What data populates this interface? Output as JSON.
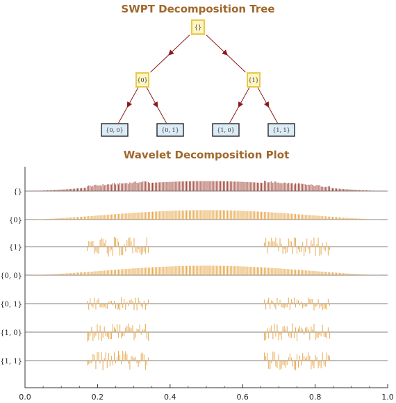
{
  "colors": {
    "title": "#a0682c",
    "edge": "#8b1a1a",
    "level1_fill": "#fdf5c4",
    "level1_stroke": "#e8c84a",
    "leaf_fill": "#dcecf7",
    "leaf_stroke": "#333333",
    "root_signal": "#a0483c",
    "sub_signal": "#e8a84c",
    "axis": "#333333"
  },
  "chart_data": [
    {
      "type": "tree",
      "title": "SWPT Decomposition Tree",
      "nodes": [
        {
          "id": "root",
          "label": "{}",
          "parent": null,
          "kind": "level1"
        },
        {
          "id": "n0",
          "label": "{0}",
          "parent": "root",
          "kind": "level1"
        },
        {
          "id": "n1",
          "label": "{1}",
          "parent": "root",
          "kind": "level1"
        },
        {
          "id": "n00",
          "label": "{0, 0}",
          "parent": "n0",
          "kind": "leaf"
        },
        {
          "id": "n01",
          "label": "{0, 1}",
          "parent": "n0",
          "kind": "leaf"
        },
        {
          "id": "n10",
          "label": "{1, 0}",
          "parent": "n1",
          "kind": "leaf"
        },
        {
          "id": "n11",
          "label": "{1, 1}",
          "parent": "n1",
          "kind": "leaf"
        }
      ]
    },
    {
      "type": "bar",
      "title": "Wavelet Decomposition Plot",
      "xlim": [
        0.0,
        1.0
      ],
      "xticks": [
        "0.0",
        "0.2",
        "0.4",
        "0.6",
        "0.8",
        "1.0"
      ],
      "series": [
        {
          "name": "{}",
          "color": "#a0483c",
          "envelope": "smooth",
          "amplitude": 0.9,
          "burst_ranges": [
            [
              0.17,
              0.34
            ],
            [
              0.66,
              0.84
            ]
          ],
          "burst_amplitude": 0.35,
          "signed": false
        },
        {
          "name": "{0}",
          "color": "#e8a84c",
          "envelope": "smooth",
          "amplitude": 0.85,
          "burst_ranges": [],
          "burst_amplitude": 0,
          "signed": false
        },
        {
          "name": "{1}",
          "color": "#e8a84c",
          "envelope": "none",
          "amplitude": 0,
          "burst_ranges": [
            [
              0.17,
              0.34
            ],
            [
              0.66,
              0.84
            ]
          ],
          "burst_amplitude": 0.9,
          "signed": true
        },
        {
          "name": "{0, 0}",
          "color": "#e8a84c",
          "envelope": "smooth",
          "amplitude": 0.85,
          "burst_ranges": [],
          "burst_amplitude": 0,
          "signed": false
        },
        {
          "name": "{0, 1}",
          "color": "#e8a84c",
          "envelope": "none",
          "amplitude": 0,
          "burst_ranges": [
            [
              0.17,
              0.34
            ],
            [
              0.66,
              0.84
            ]
          ],
          "burst_amplitude": 0.6,
          "signed": true
        },
        {
          "name": "{1, 0}",
          "color": "#e8a84c",
          "envelope": "none",
          "amplitude": 0,
          "burst_ranges": [
            [
              0.17,
              0.34
            ],
            [
              0.66,
              0.84
            ]
          ],
          "burst_amplitude": 0.85,
          "signed": true
        },
        {
          "name": "{1, 1}",
          "color": "#e8a84c",
          "envelope": "none",
          "amplitude": 0,
          "burst_ranges": [
            [
              0.17,
              0.34
            ],
            [
              0.66,
              0.84
            ]
          ],
          "burst_amplitude": 0.9,
          "signed": true
        }
      ]
    }
  ]
}
